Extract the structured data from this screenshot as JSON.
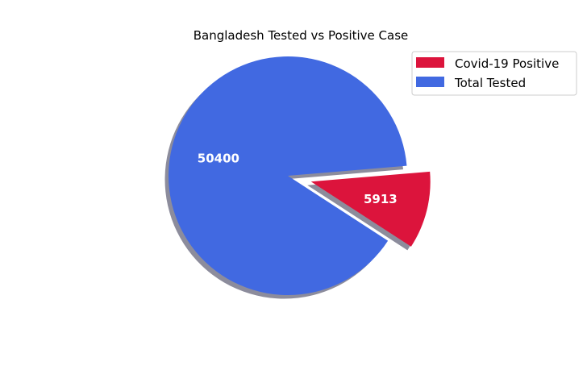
{
  "chart_data": {
    "type": "pie",
    "title": "Bangladesh Tested vs Positive Case",
    "slices": [
      {
        "label": "Covid-19 Positive",
        "value": 5913,
        "color": "#dc143c",
        "exploded": true
      },
      {
        "label": "Total Tested",
        "value": 50400,
        "color": "#4169e1",
        "exploded": false
      }
    ],
    "shadow": true,
    "legend": "upper-right"
  }
}
